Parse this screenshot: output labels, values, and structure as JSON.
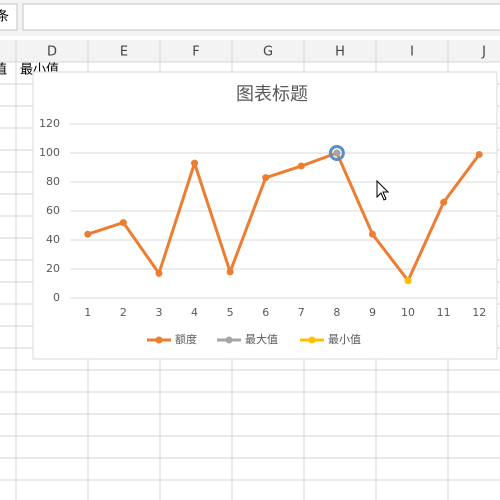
{
  "sheet": {
    "name_box": "条",
    "columns": [
      "D",
      "E",
      "F",
      "G",
      "H",
      "I",
      "J"
    ],
    "cells": [
      "最小值",
      "值"
    ]
  },
  "chart_data": {
    "type": "line",
    "title": "图表标题",
    "categories": [
      "1",
      "2",
      "3",
      "4",
      "5",
      "6",
      "7",
      "8",
      "9",
      "10",
      "11",
      "12"
    ],
    "series": [
      {
        "name": "额度",
        "color": "#ed7d31",
        "values": [
          44,
          52,
          17,
          93,
          18,
          83,
          91,
          100,
          44,
          12,
          66,
          99
        ]
      },
      {
        "name": "最大值",
        "color": "#a5a5a5",
        "values": [
          null,
          null,
          null,
          null,
          null,
          null,
          null,
          100,
          null,
          null,
          null,
          null
        ]
      },
      {
        "name": "最小值",
        "color": "#ffc000",
        "values": [
          null,
          null,
          null,
          null,
          null,
          null,
          null,
          null,
          null,
          12,
          null,
          null
        ]
      }
    ],
    "ylim": [
      0,
      120
    ],
    "yticks": [
      0,
      20,
      40,
      60,
      80,
      100,
      120
    ],
    "grid": true,
    "legend": "bottom"
  }
}
